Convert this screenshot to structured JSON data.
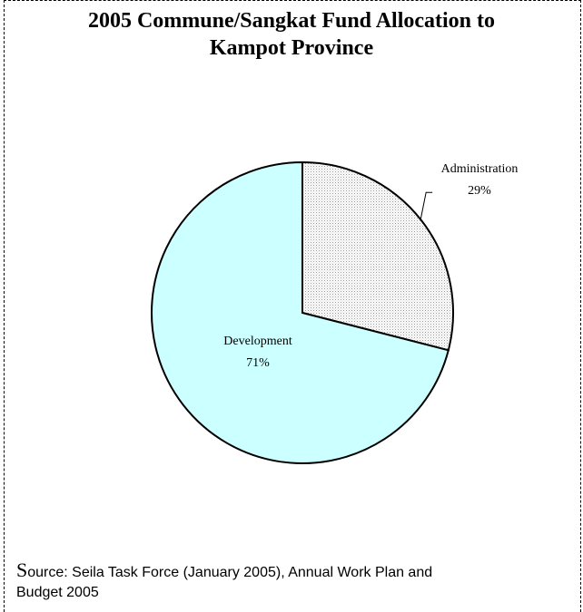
{
  "chart_data": {
    "type": "pie",
    "title_lines": [
      "2005 Commune/Sangkat Fund Allocation to",
      "Kampot Province"
    ],
    "slices": [
      {
        "label": "Administration",
        "value": 29,
        "value_label": "29%",
        "color": "#f2f2f2",
        "pattern": "dotted"
      },
      {
        "label": "Development",
        "value": 71,
        "value_label": "71%",
        "color": "#ccffff"
      }
    ],
    "start_angle": "12 o'clock",
    "direction": "clockwise",
    "legend": "none"
  },
  "source": {
    "initial": "S",
    "rest_line1": "ource: Seila Task Force (January 2005), Annual Work Plan and",
    "line2": "Budget 2005"
  }
}
